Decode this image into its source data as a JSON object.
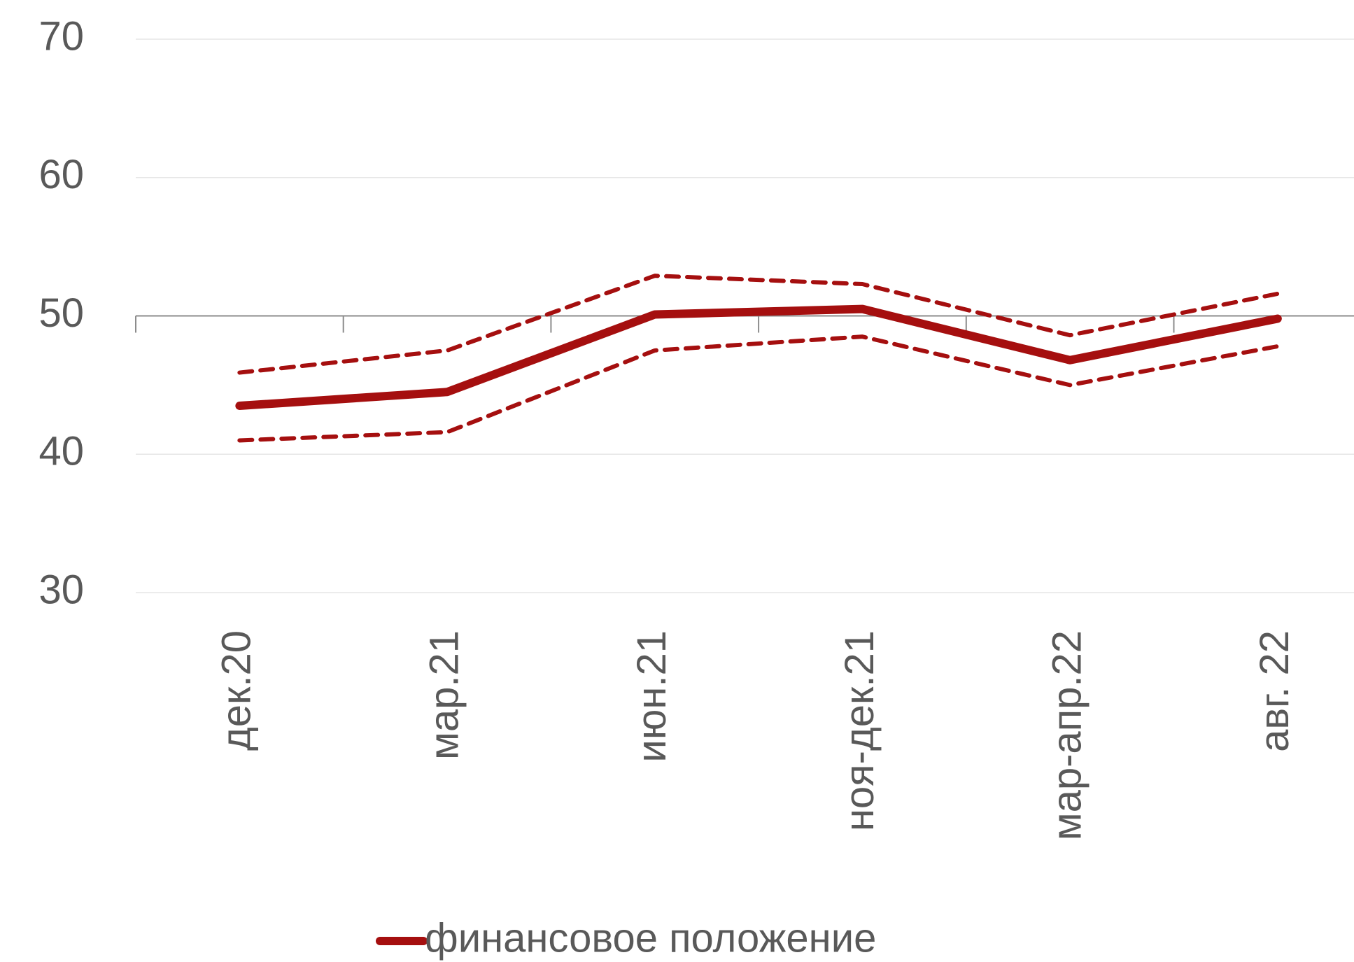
{
  "chart_data": {
    "type": "line",
    "categories": [
      "дек.20",
      "мар.21",
      "июн.21",
      "ноя-дек.21",
      "мар-апр.22",
      "авг. 22"
    ],
    "series": [
      {
        "name": "финансовое положение",
        "color": "#a50f0f",
        "style": "solid",
        "values": [
          43.5,
          44.5,
          50.1,
          50.5,
          46.8,
          49.8
        ]
      },
      {
        "color": "#a50f0f",
        "style": "dashed",
        "values": [
          45.9,
          47.5,
          52.9,
          52.3,
          48.6,
          51.6
        ]
      },
      {
        "color": "#a50f0f",
        "style": "dashed",
        "values": [
          41.0,
          41.6,
          47.5,
          48.5,
          45.0,
          47.8
        ]
      }
    ],
    "ylim": [
      30,
      70
    ],
    "yticks": [
      30,
      40,
      50,
      60,
      70
    ],
    "grid": true,
    "x_axis_at": 50,
    "legend": "bottom"
  }
}
